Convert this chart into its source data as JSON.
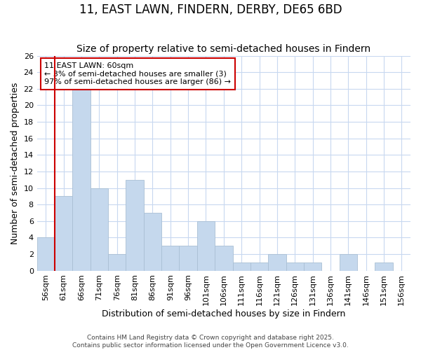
{
  "title": "11, EAST LAWN, FINDERN, DERBY, DE65 6BD",
  "subtitle": "Size of property relative to semi-detached houses in Findern",
  "xlabel": "Distribution of semi-detached houses by size in Findern",
  "ylabel": "Number of semi-detached properties",
  "categories": [
    "56sqm",
    "61sqm",
    "66sqm",
    "71sqm",
    "76sqm",
    "81sqm",
    "86sqm",
    "91sqm",
    "96sqm",
    "101sqm",
    "106sqm",
    "111sqm",
    "116sqm",
    "121sqm",
    "126sqm",
    "131sqm",
    "136sqm",
    "141sqm",
    "146sqm",
    "151sqm",
    "156sqm"
  ],
  "values": [
    4,
    9,
    22,
    10,
    2,
    11,
    7,
    3,
    3,
    6,
    3,
    1,
    1,
    2,
    1,
    1,
    0,
    2,
    0,
    1,
    0
  ],
  "bar_color": "#c5d8ed",
  "bar_edge_color": "#aabfd4",
  "red_line_color": "#cc0000",
  "red_line_x": 0.5,
  "ylim": [
    0,
    26
  ],
  "yticks": [
    0,
    2,
    4,
    6,
    8,
    10,
    12,
    14,
    16,
    18,
    20,
    22,
    24,
    26
  ],
  "annotation_text": "11 EAST LAWN: 60sqm\n← 3% of semi-detached houses are smaller (3)\n97% of semi-detached houses are larger (86) →",
  "annotation_box_color": "#ffffff",
  "annotation_box_edge": "#cc0000",
  "footer_line1": "Contains HM Land Registry data © Crown copyright and database right 2025.",
  "footer_line2": "Contains public sector information licensed under the Open Government Licence v3.0.",
  "background_color": "#ffffff",
  "grid_color": "#c8d8f0",
  "title_fontsize": 12,
  "subtitle_fontsize": 10,
  "axis_label_fontsize": 9,
  "tick_fontsize": 8,
  "annotation_fontsize": 8
}
